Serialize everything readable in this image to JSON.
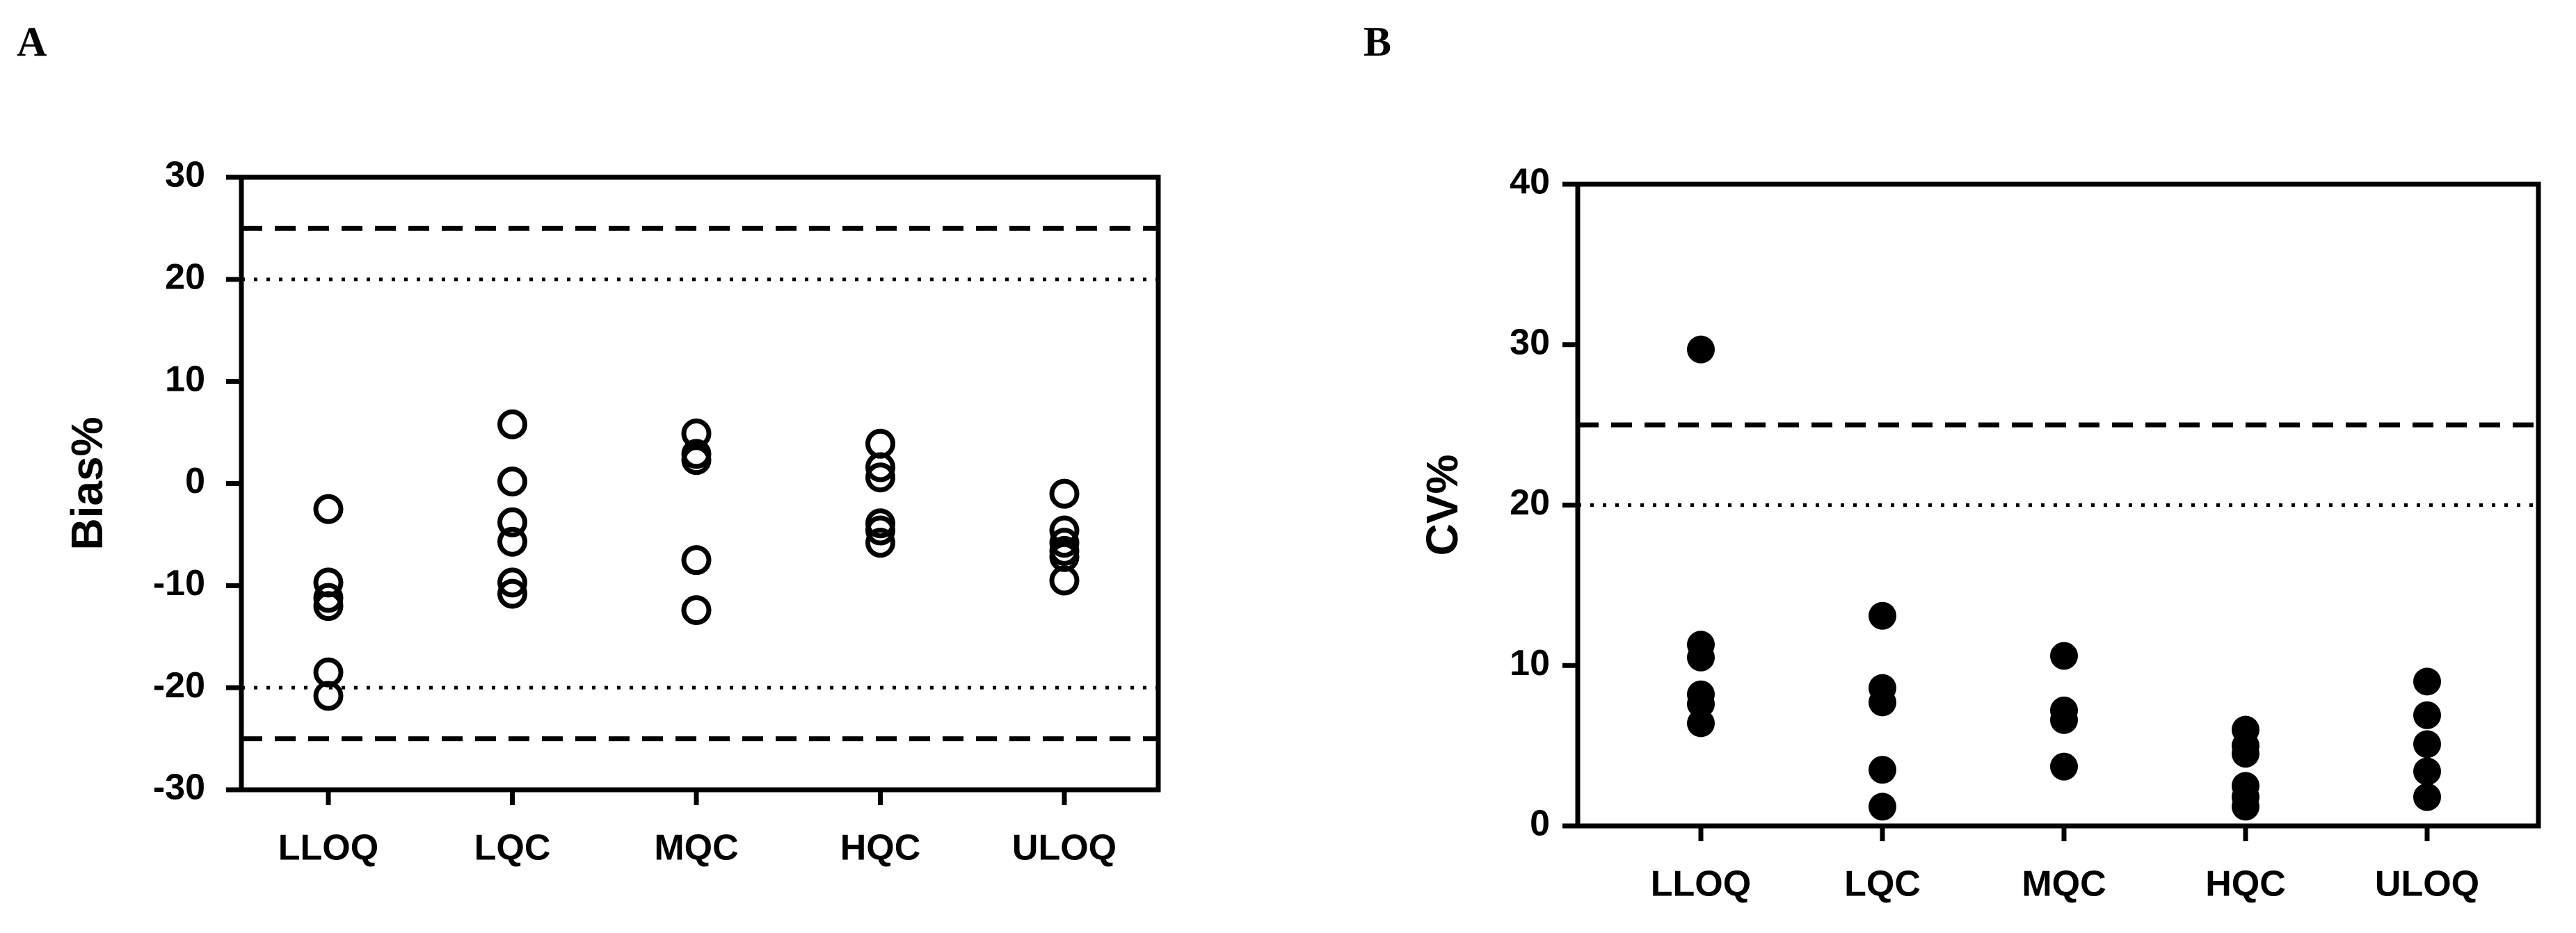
{
  "chart_data": [
    {
      "type": "strip",
      "panel_label": "A",
      "y_label": "Bias%",
      "marker": "open",
      "color": "#000000",
      "categories": [
        "LLOQ",
        "LQC",
        "MQC",
        "HQC",
        "ULOQ"
      ],
      "values": [
        [
          -2.5,
          -9.7,
          -11.2,
          -12,
          -18.5,
          -20.8
        ],
        [
          5.8,
          0.2,
          -3.8,
          -5.7,
          -9.7,
          -10.8
        ],
        [
          4.9,
          2.9,
          2.3,
          -7.5,
          -12.4
        ],
        [
          3.9,
          1.6,
          0.6,
          -3.9,
          -4.6,
          -5.8
        ],
        [
          -1,
          -4.6,
          -5.8,
          -6.6,
          -7.2,
          -9.5
        ]
      ],
      "ylim": [
        -30,
        30
      ],
      "yticks": [
        -30,
        -20,
        -10,
        0,
        10,
        20,
        30
      ],
      "reference_lines": [
        {
          "value": 25,
          "style": "dashed"
        },
        {
          "value": 20,
          "style": "dotted"
        },
        {
          "value": -20,
          "style": "dotted"
        },
        {
          "value": -25,
          "style": "dashed"
        }
      ]
    },
    {
      "type": "strip",
      "panel_label": "B",
      "y_label": "CV%",
      "marker": "filled",
      "color": "#000000",
      "categories": [
        "LLOQ",
        "LQC",
        "MQC",
        "HQC",
        "ULOQ"
      ],
      "values": [
        [
          29.7,
          11.3,
          10.5,
          8.2,
          7.6,
          6.4
        ],
        [
          13.1,
          8.6,
          7.7,
          3.5,
          1.2
        ],
        [
          10.6,
          7.2,
          6.6,
          3.7
        ],
        [
          6,
          5,
          4.5,
          2.5,
          1.8,
          1.2
        ],
        [
          9,
          6.9,
          5.1,
          3.4,
          1.8
        ]
      ],
      "ylim": [
        0,
        40
      ],
      "yticks": [
        0,
        10,
        20,
        30,
        40
      ],
      "reference_lines": [
        {
          "value": 25,
          "style": "dashed"
        },
        {
          "value": 20,
          "style": "dotted"
        }
      ]
    }
  ]
}
